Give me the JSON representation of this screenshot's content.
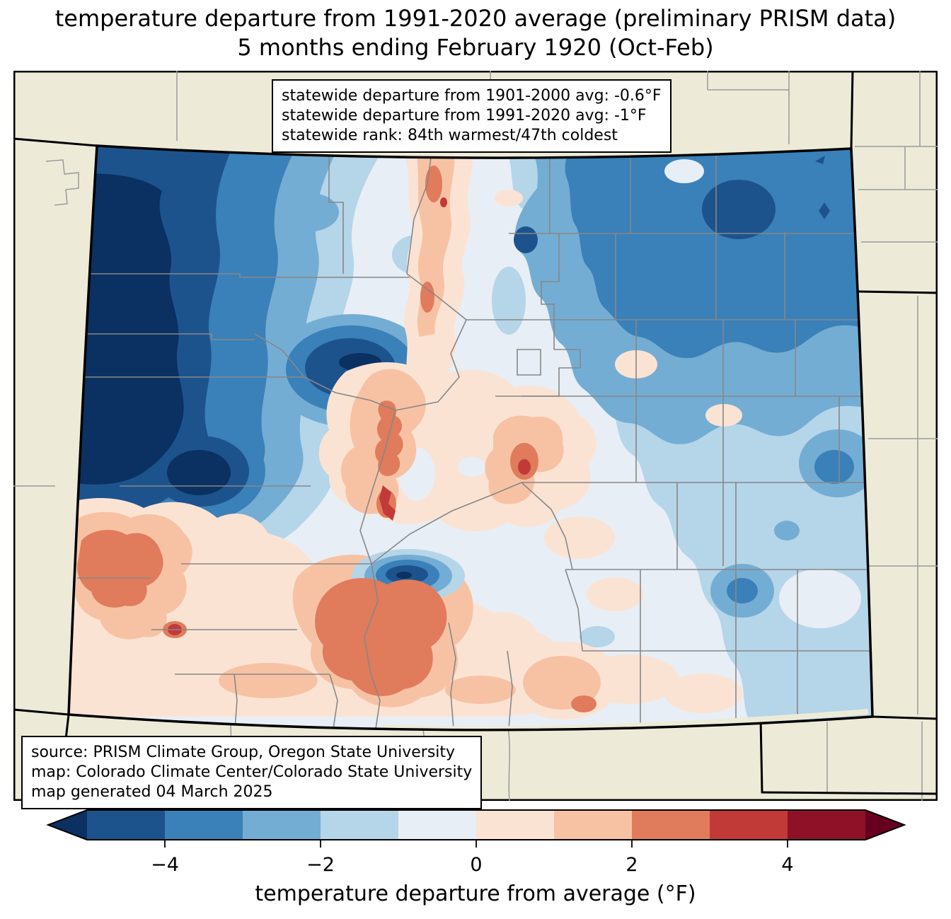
{
  "title": {
    "line1": "temperature departure from 1991-2020 average (preliminary PRISM data)",
    "line2": "5 months ending February 1920 (Oct-Feb)"
  },
  "stats_box": {
    "line1": "statewide departure from 1901-2000 avg: -0.6°F",
    "line2": "statewide departure from 1991-2020 avg: -1°F",
    "line3": "statewide rank: 84th warmest/47th coldest"
  },
  "source_box": {
    "line1": "source: PRISM Climate Group, Oregon State University",
    "line2": "map: Colorado Climate Center/Colorado State University",
    "line3": "map generated 04 March 2025"
  },
  "colorbar": {
    "label": "temperature departure from average (°F)",
    "range": [
      -5,
      5
    ],
    "ticks": [
      {
        "value": -4,
        "label": "−4"
      },
      {
        "value": -2,
        "label": "−2"
      },
      {
        "value": 0,
        "label": "0"
      },
      {
        "value": 2,
        "label": "2"
      },
      {
        "value": 4,
        "label": "4"
      }
    ],
    "segments": [
      {
        "from": -5,
        "to": -4,
        "color": "#1d538d"
      },
      {
        "from": -4,
        "to": -3,
        "color": "#3a80b9"
      },
      {
        "from": -3,
        "to": -2,
        "color": "#74add3"
      },
      {
        "from": -2,
        "to": -1,
        "color": "#b5d5e9"
      },
      {
        "from": -1,
        "to": 0,
        "color": "#e7eef5"
      },
      {
        "from": 0,
        "to": 1,
        "color": "#fbe3d3"
      },
      {
        "from": 1,
        "to": 2,
        "color": "#f7c2a4"
      },
      {
        "from": 2,
        "to": 3,
        "color": "#e07b5c"
      },
      {
        "from": 3,
        "to": 4,
        "color": "#c23a38"
      },
      {
        "from": 4,
        "to": 5,
        "color": "#8f1127"
      }
    ],
    "under_color": "#0a3161",
    "over_color": "#67001f"
  },
  "map": {
    "state": "Colorado",
    "outside_fill": "#edebd8",
    "county_line_color": "#878787",
    "state_border_color": "#000000"
  },
  "chart_data": {
    "type": "choropleth_contour_map",
    "region": "Colorado",
    "statewide_departure_1901_2000_F": -0.6,
    "statewide_departure_1991_2020_F": -1,
    "statewide_rank": "84th warmest/47th coldest",
    "scale_range_F": [
      -5,
      5
    ],
    "scale_step_F": 1
  }
}
